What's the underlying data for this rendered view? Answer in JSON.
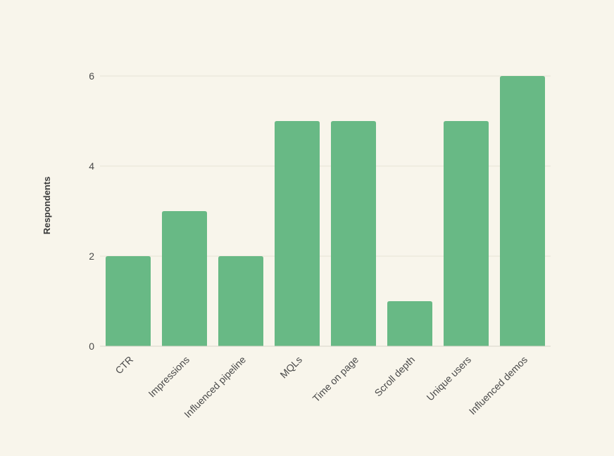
{
  "chart_data": {
    "type": "bar",
    "categories": [
      "CTR",
      "Impressions",
      "Influenced pipeline",
      "MQLs",
      "Time on page",
      "Scroll depth",
      "Unique users",
      "Influenced demos"
    ],
    "values": [
      2,
      3,
      2,
      5,
      5,
      1,
      5,
      6
    ],
    "title": "",
    "xlabel": "",
    "ylabel": "Respondents",
    "ylim": [
      0,
      6
    ],
    "yticks": [
      0,
      2,
      4,
      6
    ],
    "grid": true,
    "legend": "none",
    "bar_color": "#68b985",
    "grid_color": "#e6e2d6",
    "axis_color": "#d9d5c8"
  }
}
